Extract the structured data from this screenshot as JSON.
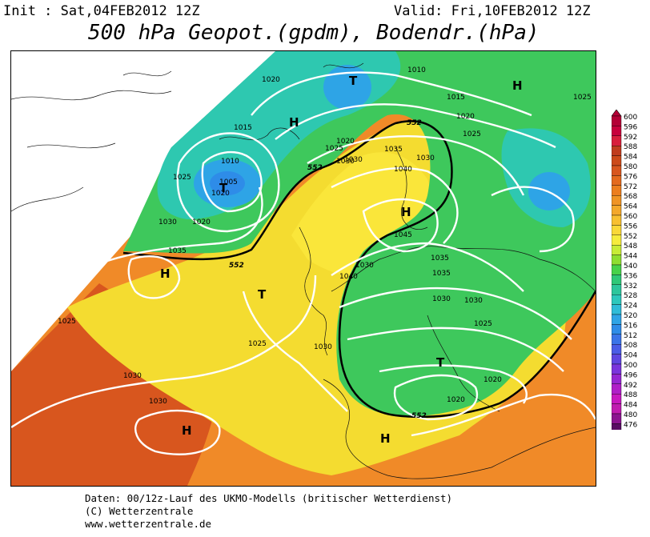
{
  "header": {
    "init": "Init : Sat,04FEB2012 12Z",
    "valid": "Valid: Fri,10FEB2012 12Z",
    "title": "500 hPa Geopot.(gpdm), Bodendr.(hPa)"
  },
  "footer": {
    "line1": "Daten: 00/12z-Lauf des UKMO-Modells (britischer Wetterdienst)",
    "line2": "(C) Wetterzentrale",
    "line3": "www.wetterzentrale.de"
  },
  "colorbar": {
    "ticks": [
      "600",
      "596",
      "592",
      "588",
      "584",
      "580",
      "576",
      "572",
      "568",
      "564",
      "560",
      "556",
      "552",
      "548",
      "544",
      "540",
      "536",
      "532",
      "528",
      "524",
      "520",
      "516",
      "512",
      "508",
      "504",
      "500",
      "496",
      "492",
      "488",
      "484",
      "480",
      "476"
    ],
    "colors": [
      "#b40036",
      "#c8003c",
      "#d81e3c",
      "#c03c1e",
      "#cc4a1a",
      "#d8561e",
      "#e46a1e",
      "#ec7e1e",
      "#f09424",
      "#f4a82a",
      "#f8c030",
      "#fad838",
      "#f6ec3c",
      "#c8ec36",
      "#8ede30",
      "#46d24a",
      "#2ec878",
      "#2cc69c",
      "#2cc8bc",
      "#2ebcd8",
      "#2ea4e6",
      "#2e8ce8",
      "#3a74e8",
      "#4a5ce6",
      "#5e46e0",
      "#7a34dc",
      "#9626d2",
      "#b01ec8",
      "#c818c0",
      "#c01cb0",
      "#8c1490",
      "#5a0c64"
    ]
  },
  "map": {
    "centers": [
      {
        "label": "T"
      },
      {
        "label": "H"
      },
      {
        "label": "T"
      },
      {
        "label": "H"
      },
      {
        "label": "T"
      },
      {
        "label": "H"
      },
      {
        "label": "H"
      },
      {
        "label": "T"
      },
      {
        "label": "H"
      },
      {
        "label": "H"
      }
    ],
    "isobar_labels": [
      "1010",
      "1015",
      "1020",
      "1025",
      "1030",
      "1035",
      "1040",
      "1045",
      "1035",
      "1030",
      "1025",
      "1020",
      "1020",
      "1025",
      "1030",
      "1035",
      "1040",
      "1030",
      "1025",
      "1030",
      "1030",
      "1020",
      "1015",
      "1010",
      "1020",
      "1025",
      "1005",
      "1025",
      "1030",
      "1020",
      "1035",
      "1030",
      "1030",
      "1025",
      "1030",
      "1020"
    ],
    "contour_label": "552"
  }
}
